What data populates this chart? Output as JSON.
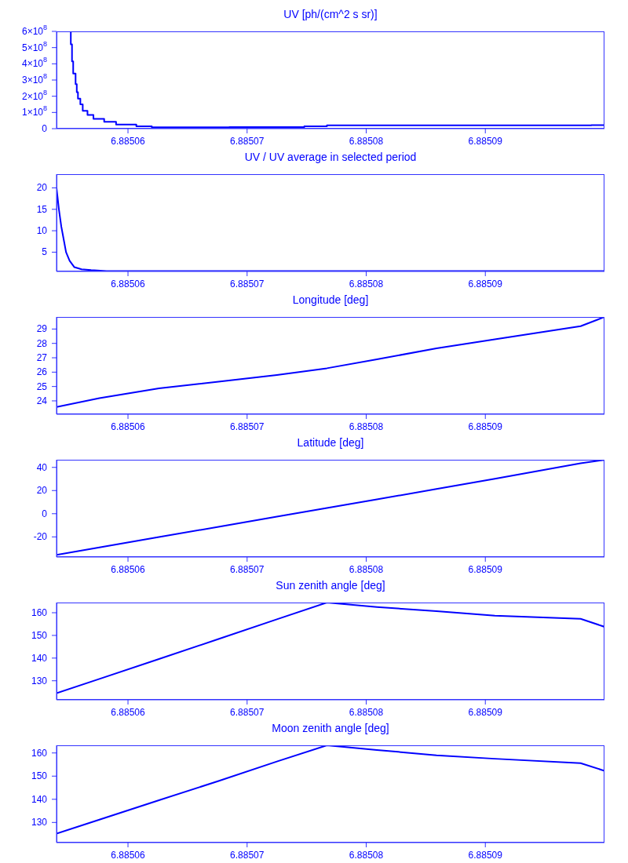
{
  "chart_data": [
    {
      "type": "step",
      "title": "UV [ph/(cm^2 s sr)]",
      "color": "#0000ff",
      "xlim": [
        6.885054,
        6.8851
      ],
      "xticks": [
        6.88506,
        6.88507,
        6.88508,
        6.88509
      ],
      "ylim": [
        0,
        600000000
      ],
      "yticks": [
        {
          "value": 0,
          "label": "0"
        },
        {
          "value": 100000000,
          "label": "1×10$^{8}$"
        },
        {
          "value": 200000000,
          "label": "2×10$^{8}$"
        },
        {
          "value": 300000000,
          "label": "3×10$^{8}$"
        },
        {
          "value": 400000000,
          "label": "4×10$^{8}$"
        },
        {
          "value": 500000000,
          "label": "5×10$^{8}$"
        },
        {
          "value": 600000000,
          "label": "6×10$^{8}$"
        }
      ],
      "x": [
        6.885055,
        6.8850552,
        6.8850553,
        6.8850554,
        6.8850556,
        6.8850557,
        6.8850558,
        6.885056,
        6.8850562,
        6.8850566,
        6.8850571,
        6.885058,
        6.885059,
        6.8850607,
        6.885062,
        6.8850685,
        6.8850748,
        6.8850767,
        6.8850876,
        6.8850989,
        6.8851
      ],
      "values": [
        600000000,
        520000000,
        415000000,
        340000000,
        275000000,
        225000000,
        185000000,
        150000000,
        110000000,
        85000000,
        60000000,
        42000000,
        25000000,
        15000000,
        8000000,
        10000000,
        15000000,
        20000000,
        20000000,
        22000000,
        22000000
      ]
    },
    {
      "type": "line",
      "title": "UV / UV average in selected period",
      "color": "#0000ff",
      "xlim": [
        6.885054,
        6.8851
      ],
      "xticks": [
        6.88506,
        6.88507,
        6.88508,
        6.88509
      ],
      "ylim": [
        0.5,
        23.2
      ],
      "yticks": [
        5,
        10,
        15,
        20
      ],
      "x": [
        6.885054,
        6.885054,
        6.8850542,
        6.8850544,
        6.8850546,
        6.8850548,
        6.8850551,
        6.8850555,
        6.8850561,
        6.8850569,
        6.8850582,
        6.885062,
        6.885075,
        6.885085,
        6.8851
      ],
      "values": [
        23.2,
        20,
        15,
        11,
        8,
        5,
        3,
        1.5,
        1,
        0.8,
        0.6,
        0.6,
        0.6,
        0.6,
        0.6
      ]
    },
    {
      "type": "line",
      "title": "Longitude [deg]",
      "color": "#0000ff",
      "xlim": [
        6.885054,
        6.8851
      ],
      "xticks": [
        6.88506,
        6.88507,
        6.88508,
        6.88509
      ],
      "ylim": [
        23.07,
        29.84
      ],
      "yticks": [
        24,
        25,
        26,
        27,
        28,
        29
      ],
      "x": [
        6.885054,
        6.8850576,
        6.8850626,
        6.8850676,
        6.8850725,
        6.8850767,
        6.8850809,
        6.8850859,
        6.8850908,
        6.885098,
        6.8851
      ],
      "values": [
        23.57,
        24.19,
        24.87,
        25.33,
        25.8,
        26.27,
        26.89,
        27.66,
        28.29,
        29.2,
        29.84
      ]
    },
    {
      "type": "line",
      "title": "Latitude [deg]",
      "color": "#0000ff",
      "xlim": [
        6.885054,
        6.8851
      ],
      "xticks": [
        6.88506,
        6.88507,
        6.88508,
        6.88509
      ],
      "ylim": [
        -37.4,
        46.6
      ],
      "yticks": [
        -20,
        0,
        20,
        40
      ],
      "x": [
        6.885054,
        6.8850576,
        6.8850626,
        6.8850676,
        6.8850725,
        6.8850767,
        6.8850809,
        6.8850859,
        6.8850908,
        6.885098,
        6.8851
      ],
      "values": [
        -35.5,
        -29.1,
        -20.2,
        -11.3,
        -2.5,
        5.0,
        12.4,
        21.3,
        30.2,
        43.5,
        46.5
      ]
    },
    {
      "type": "line",
      "title": "Sun zenith angle [deg]",
      "color": "#0000ff",
      "xlim": [
        6.885054,
        6.8851
      ],
      "xticks": [
        6.88506,
        6.88507,
        6.88508,
        6.88509
      ],
      "ylim": [
        121.6,
        164.5
      ],
      "yticks": [
        130,
        140,
        150,
        160
      ],
      "x": [
        6.885054,
        6.8850576,
        6.8850626,
        6.8850676,
        6.8850725,
        6.8850767,
        6.8850809,
        6.8850859,
        6.8850908,
        6.885098,
        6.8851
      ],
      "values": [
        124.5,
        130.8,
        139.6,
        148.4,
        157.1,
        164.5,
        162.5,
        160.7,
        158.7,
        157.3,
        153.8
      ]
    },
    {
      "type": "line",
      "title": "Moon zenith angle [deg]",
      "color": "#0000ff",
      "xlim": [
        6.885054,
        6.8851
      ],
      "xticks": [
        6.88506,
        6.88507,
        6.88508,
        6.88509
      ],
      "ylim": [
        121.3,
        163.3
      ],
      "yticks": [
        130,
        140,
        150,
        160
      ],
      "x": [
        6.885054,
        6.8850576,
        6.8850626,
        6.8850676,
        6.8850725,
        6.8850767,
        6.8850809,
        6.8850859,
        6.8850908,
        6.885098,
        6.8851
      ],
      "values": [
        125.2,
        131.2,
        139.6,
        147.9,
        156.3,
        163.3,
        161.3,
        159,
        157.5,
        155.6,
        152.3
      ]
    }
  ]
}
